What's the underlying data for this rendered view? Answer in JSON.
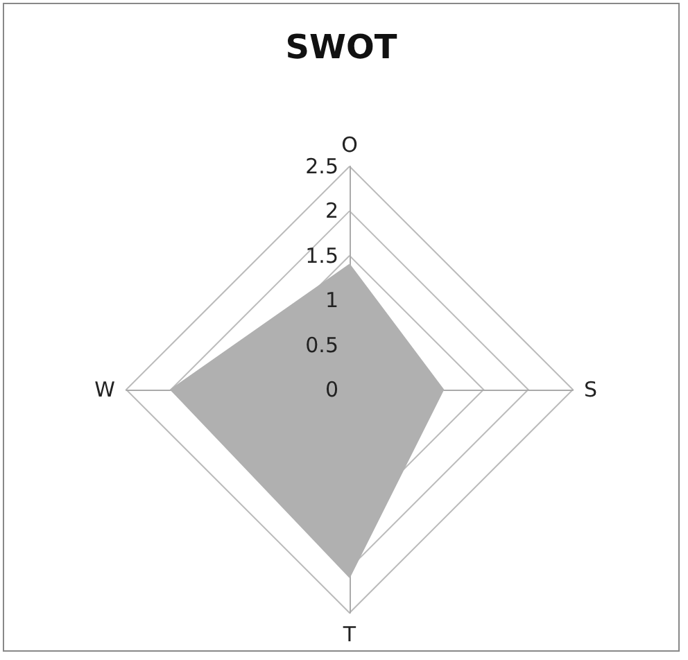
{
  "chart_data": {
    "type": "radar",
    "title": "SWOT",
    "categories": [
      "O",
      "S",
      "T",
      "W"
    ],
    "series": [
      {
        "color": "#b0b0b0",
        "values": [
          1.4,
          1.05,
          2.1,
          2
        ]
      }
    ],
    "ylim": [
      0,
      2.5
    ],
    "yticks": [
      0,
      0.5,
      1,
      1.5,
      2,
      2.5
    ],
    "grid": true,
    "marker": "none"
  }
}
